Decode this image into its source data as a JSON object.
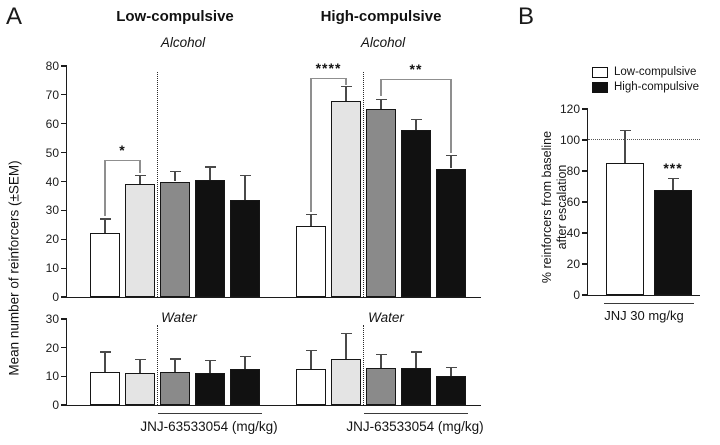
{
  "figure": {
    "panel_a_label": "A",
    "panel_b_label": "B"
  },
  "palette": {
    "white": "#ffffff",
    "light_gray": "#e4e4e4",
    "dark_gray": "#8a8a8a",
    "black": "#111111",
    "error_bar": "#4a4a4a",
    "bracket": "#8f8f8f"
  },
  "chart_data": [
    {
      "id": "alcohol",
      "type": "bar",
      "ylabel": "Mean number of reinforcers (±SEM)",
      "ylim": [
        0,
        80
      ],
      "yticks": [
        0,
        10,
        20,
        30,
        40,
        50,
        60,
        70,
        80
      ],
      "grid": false,
      "groups": [
        {
          "name": "Low-compulsive",
          "subtitle": "Alcohol",
          "divider_after_bar": 2,
          "bars": [
            {
              "color": "white",
              "value": 22,
              "sem": 5
            },
            {
              "color": "light_gray",
              "value": 39,
              "sem": 3
            },
            {
              "color": "dark_gray",
              "value": 40,
              "sem": 3.5
            },
            {
              "color": "black",
              "value": 40.5,
              "sem": 4.5
            },
            {
              "color": "black",
              "value": 33.5,
              "sem": 8.5
            }
          ],
          "brackets": [
            {
              "from": 0,
              "to": 1,
              "label": "*",
              "y": 47.5,
              "left_down_to": 28,
              "right_down_to": 43
            }
          ]
        },
        {
          "name": "High-compulsive",
          "subtitle": "Alcohol",
          "divider_after_bar": 2,
          "bars": [
            {
              "color": "white",
              "value": 24.5,
              "sem": 4
            },
            {
              "color": "light_gray",
              "value": 68,
              "sem": 5
            },
            {
              "color": "dark_gray",
              "value": 65,
              "sem": 3.5
            },
            {
              "color": "black",
              "value": 58,
              "sem": 3.5
            },
            {
              "color": "black",
              "value": 44.5,
              "sem": 4.5
            }
          ],
          "brackets": [
            {
              "from": 0,
              "to": 1,
              "label": "****",
              "y": 76,
              "left_down_to": 29.5,
              "right_down_to": 73.5
            },
            {
              "from": 2,
              "to": 4,
              "label": "**",
              "y": 75.5,
              "left_down_to": 69.5,
              "right_down_to": 50
            }
          ]
        }
      ]
    },
    {
      "id": "water",
      "type": "bar",
      "ylim": [
        0,
        30
      ],
      "yticks": [
        0,
        10,
        20,
        30
      ],
      "grid": false,
      "groups": [
        {
          "name": "Low-compulsive",
          "subtitle": "Water",
          "divider_after_bar": 2,
          "underline": {
            "from": 2,
            "to": 4,
            "label": "JNJ-63533054 (mg/kg)"
          },
          "bars": [
            {
              "color": "white",
              "value": 11.5,
              "sem": 7
            },
            {
              "color": "light_gray",
              "value": 11.3,
              "sem": 4.5
            },
            {
              "color": "dark_gray",
              "value": 11.5,
              "sem": 4.5
            },
            {
              "color": "black",
              "value": 11,
              "sem": 4.5
            },
            {
              "color": "black",
              "value": 12.5,
              "sem": 4.5
            }
          ],
          "brackets": []
        },
        {
          "name": "High-compulsive",
          "subtitle": "Water",
          "divider_after_bar": 2,
          "underline": {
            "from": 2,
            "to": 4,
            "label": "JNJ-63533054 (mg/kg)"
          },
          "bars": [
            {
              "color": "white",
              "value": 12.5,
              "sem": 6.5
            },
            {
              "color": "light_gray",
              "value": 16,
              "sem": 9
            },
            {
              "color": "dark_gray",
              "value": 13,
              "sem": 4.5
            },
            {
              "color": "black",
              "value": 13,
              "sem": 5.5
            },
            {
              "color": "black",
              "value": 10,
              "sem": 3
            }
          ],
          "brackets": []
        }
      ]
    },
    {
      "id": "baseline_percent",
      "type": "bar",
      "ylabel_line1": "% reinforcers from baseline",
      "ylabel_line2": "after escalation",
      "ylim": [
        0,
        120
      ],
      "yticks": [
        0,
        20,
        40,
        60,
        80,
        100,
        120
      ],
      "reference_line": 100,
      "grid": false,
      "legend": [
        {
          "label": "Low-compulsive",
          "color": "white"
        },
        {
          "label": "High-compulsive",
          "color": "black"
        }
      ],
      "groups": [
        {
          "name": "JNJ 30 mg/kg",
          "underline": {
            "from": 0,
            "to": 1,
            "label": "JNJ 30 mg/kg"
          },
          "bars": [
            {
              "color": "white",
              "value": 85,
              "sem": 21
            },
            {
              "color": "black",
              "value": 68,
              "sem": 7,
              "sig": "***"
            }
          ],
          "brackets": []
        }
      ]
    }
  ]
}
